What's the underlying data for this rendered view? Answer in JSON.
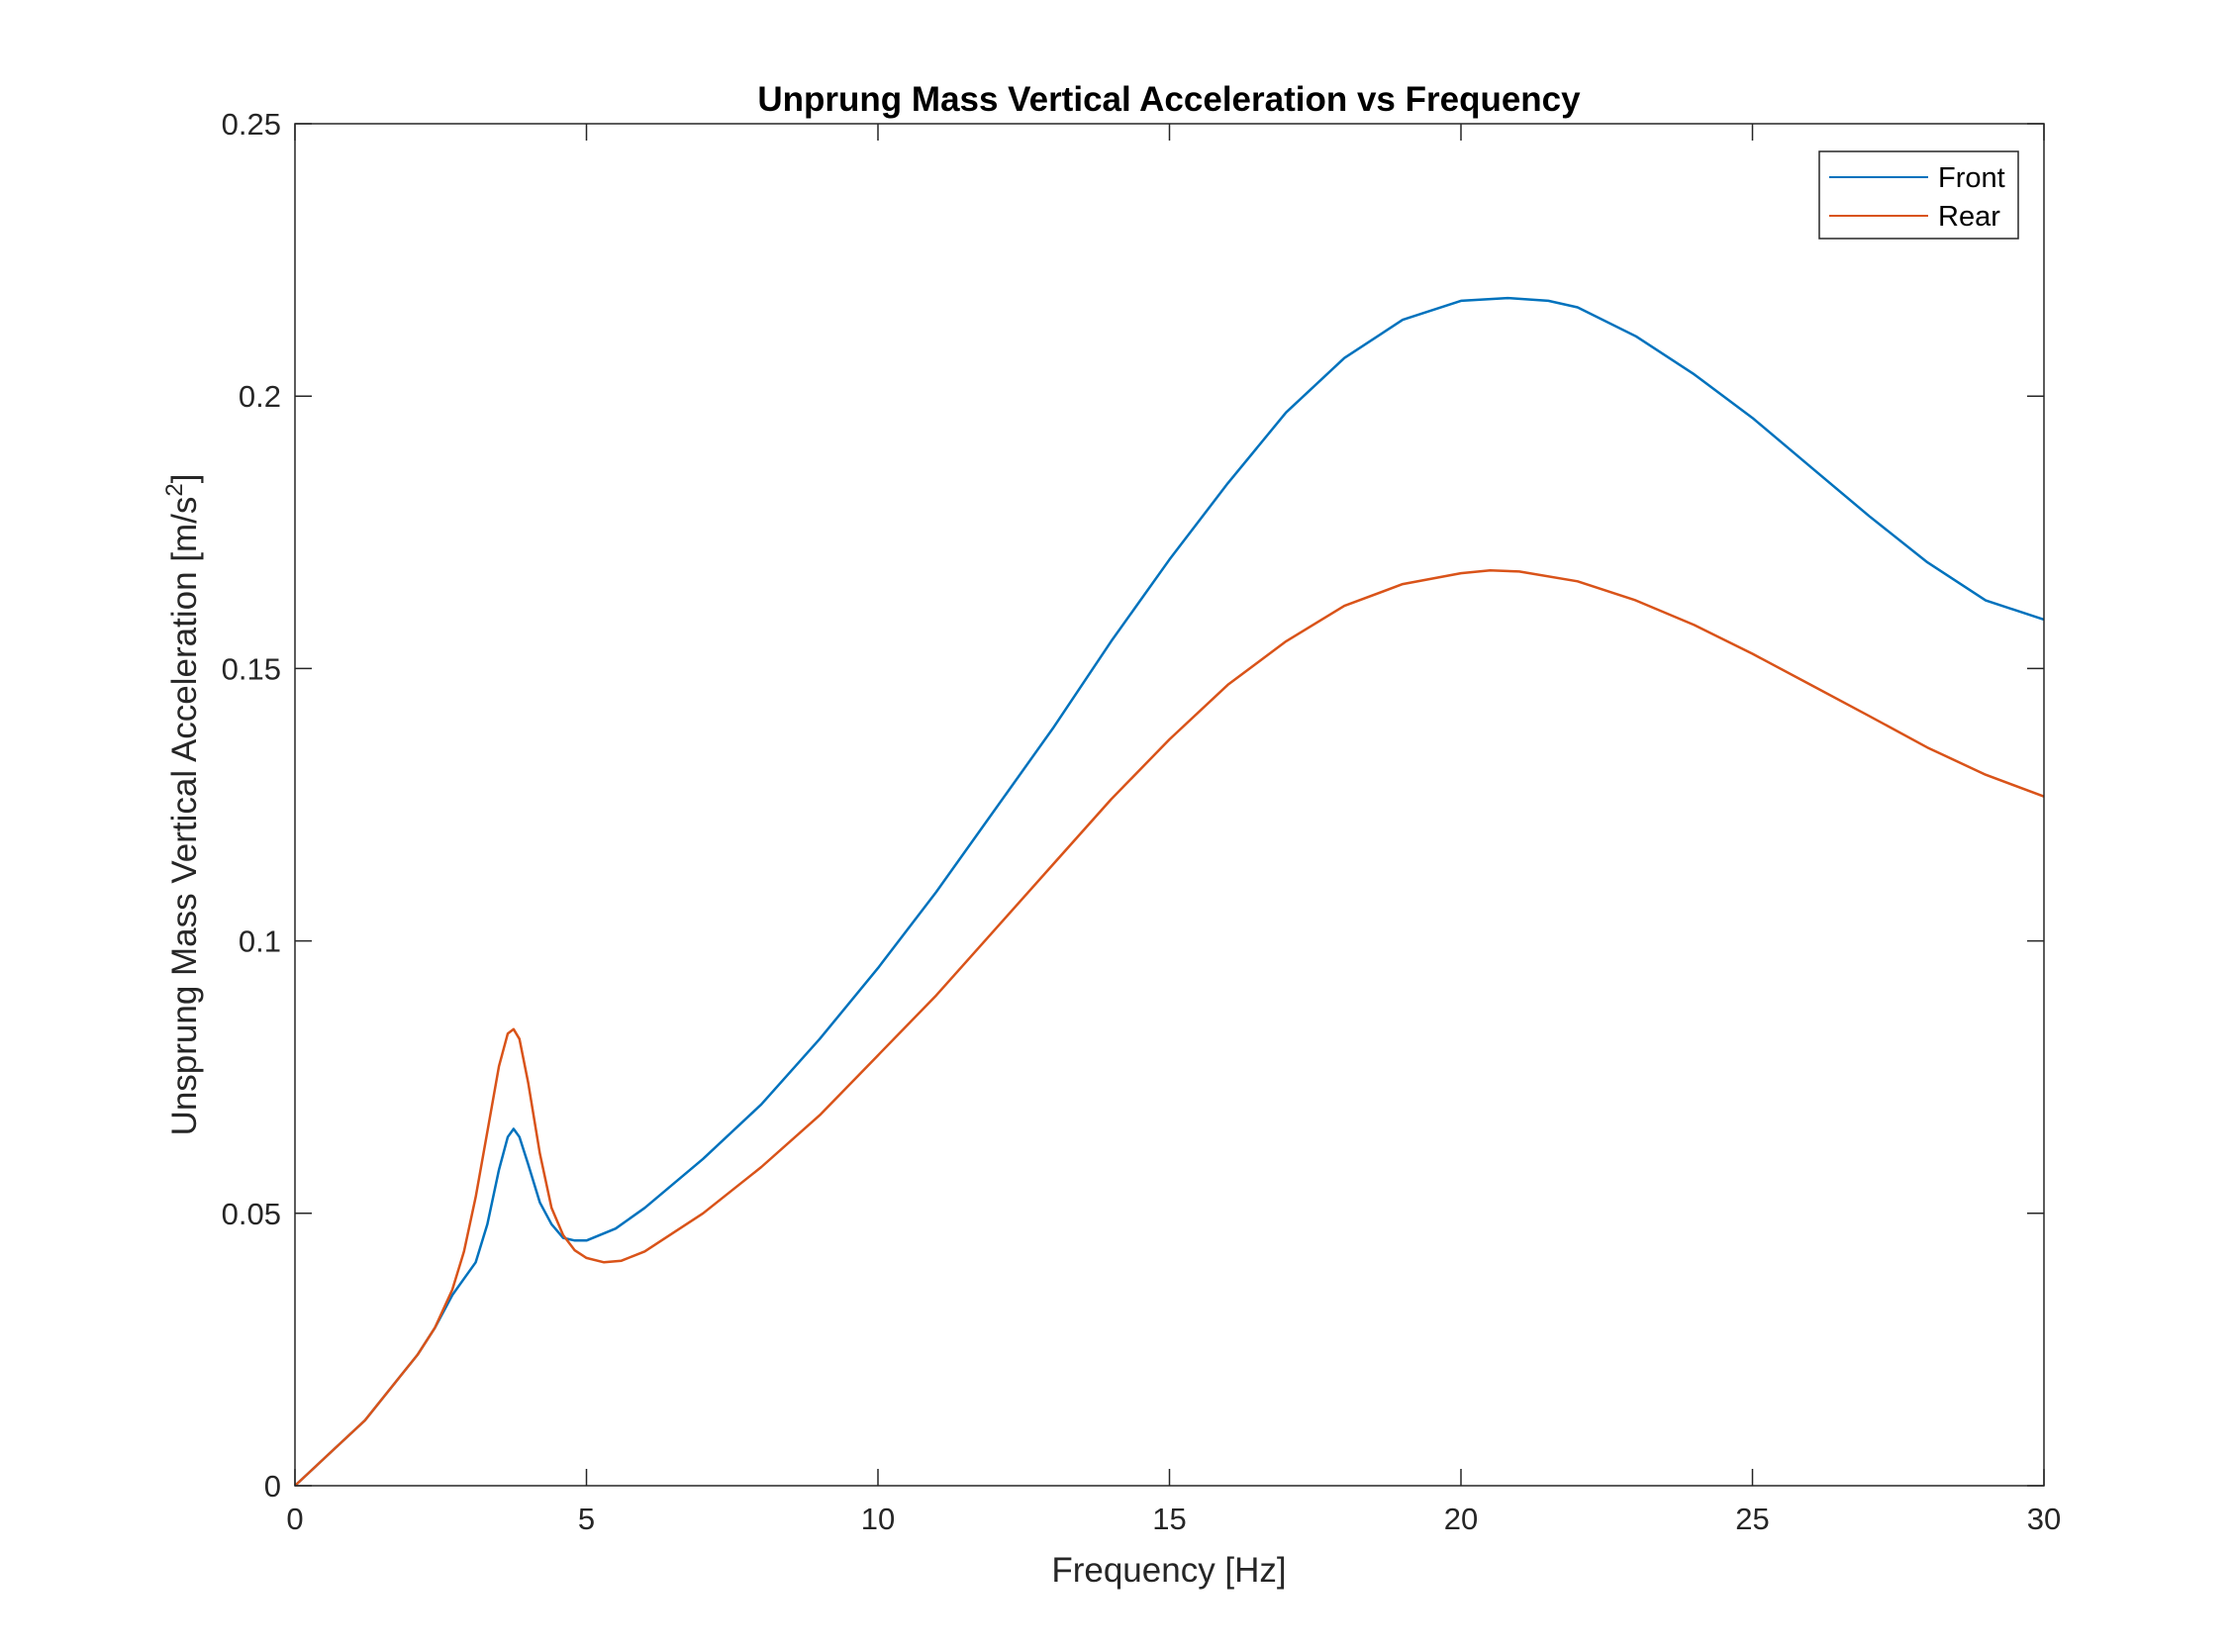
{
  "chart_data": {
    "type": "line",
    "title": "Unprung Mass Vertical Acceleration vs Frequency",
    "xlabel": "Frequency [Hz]",
    "ylabel_main": "Unsprung Mass Vertical Acceleration [m/s",
    "ylabel_sup": "2",
    "ylabel_end": "]",
    "xlim": [
      0,
      30
    ],
    "ylim": [
      0,
      0.25
    ],
    "xticks": [
      0,
      5,
      10,
      15,
      20,
      25,
      30
    ],
    "xtick_labels": [
      "0",
      "5",
      "10",
      "15",
      "20",
      "25",
      "30"
    ],
    "yticks": [
      0,
      0.05,
      0.1,
      0.15,
      0.2,
      0.25
    ],
    "ytick_labels": [
      "0",
      "0.05",
      "0.1",
      "0.15",
      "0.2",
      "0.25"
    ],
    "grid": false,
    "legend_position": "top-right",
    "series": [
      {
        "name": "Front",
        "color": "#0072BD",
        "points": [
          [
            0,
            0
          ],
          [
            0.3,
            0.003
          ],
          [
            0.6,
            0.006
          ],
          [
            0.9,
            0.009
          ],
          [
            1.2,
            0.012
          ],
          [
            1.5,
            0.016
          ],
          [
            1.8,
            0.02
          ],
          [
            2.1,
            0.024
          ],
          [
            2.4,
            0.029
          ],
          [
            2.7,
            0.035
          ],
          [
            2.9,
            0.038
          ],
          [
            3.1,
            0.041
          ],
          [
            3.3,
            0.048
          ],
          [
            3.5,
            0.058
          ],
          [
            3.65,
            0.064
          ],
          [
            3.75,
            0.0655
          ],
          [
            3.85,
            0.064
          ],
          [
            4.0,
            0.059
          ],
          [
            4.2,
            0.052
          ],
          [
            4.4,
            0.048
          ],
          [
            4.6,
            0.0455
          ],
          [
            4.8,
            0.045
          ],
          [
            5.0,
            0.045
          ],
          [
            5.5,
            0.0472
          ],
          [
            6,
            0.051
          ],
          [
            7,
            0.06
          ],
          [
            8,
            0.07
          ],
          [
            9,
            0.082
          ],
          [
            10,
            0.095
          ],
          [
            11,
            0.109
          ],
          [
            12,
            0.124
          ],
          [
            13,
            0.139
          ],
          [
            14,
            0.155
          ],
          [
            15,
            0.17
          ],
          [
            16,
            0.184
          ],
          [
            17,
            0.197
          ],
          [
            18,
            0.207
          ],
          [
            19,
            0.214
          ],
          [
            20,
            0.2175
          ],
          [
            20.8,
            0.218
          ],
          [
            21.5,
            0.2175
          ],
          [
            22,
            0.2163
          ],
          [
            23,
            0.211
          ],
          [
            24,
            0.204
          ],
          [
            25,
            0.196
          ],
          [
            26,
            0.187
          ],
          [
            27,
            0.178
          ],
          [
            28,
            0.1695
          ],
          [
            29,
            0.1625
          ],
          [
            30,
            0.159
          ]
        ]
      },
      {
        "name": "Rear",
        "color": "#D95319",
        "points": [
          [
            0,
            0
          ],
          [
            0.3,
            0.003
          ],
          [
            0.6,
            0.006
          ],
          [
            0.9,
            0.009
          ],
          [
            1.2,
            0.012
          ],
          [
            1.5,
            0.016
          ],
          [
            1.8,
            0.02
          ],
          [
            2.1,
            0.024
          ],
          [
            2.4,
            0.029
          ],
          [
            2.7,
            0.036
          ],
          [
            2.9,
            0.043
          ],
          [
            3.1,
            0.053
          ],
          [
            3.3,
            0.065
          ],
          [
            3.5,
            0.077
          ],
          [
            3.65,
            0.083
          ],
          [
            3.75,
            0.0838
          ],
          [
            3.85,
            0.082
          ],
          [
            4.0,
            0.074
          ],
          [
            4.2,
            0.061
          ],
          [
            4.4,
            0.051
          ],
          [
            4.6,
            0.046
          ],
          [
            4.8,
            0.0432
          ],
          [
            5.0,
            0.0418
          ],
          [
            5.3,
            0.041
          ],
          [
            5.6,
            0.0413
          ],
          [
            6,
            0.043
          ],
          [
            7,
            0.05
          ],
          [
            8,
            0.0585
          ],
          [
            9,
            0.068
          ],
          [
            10,
            0.079
          ],
          [
            11,
            0.09
          ],
          [
            12,
            0.102
          ],
          [
            13,
            0.114
          ],
          [
            14,
            0.126
          ],
          [
            15,
            0.137
          ],
          [
            16,
            0.147
          ],
          [
            17,
            0.155
          ],
          [
            18,
            0.1615
          ],
          [
            19,
            0.1655
          ],
          [
            20,
            0.1675
          ],
          [
            20.5,
            0.168
          ],
          [
            21,
            0.1678
          ],
          [
            22,
            0.166
          ],
          [
            23,
            0.1625
          ],
          [
            24,
            0.158
          ],
          [
            25,
            0.1527
          ],
          [
            26,
            0.147
          ],
          [
            27,
            0.1413
          ],
          [
            28,
            0.1355
          ],
          [
            29,
            0.1305
          ],
          [
            30,
            0.1265
          ]
        ]
      }
    ]
  }
}
